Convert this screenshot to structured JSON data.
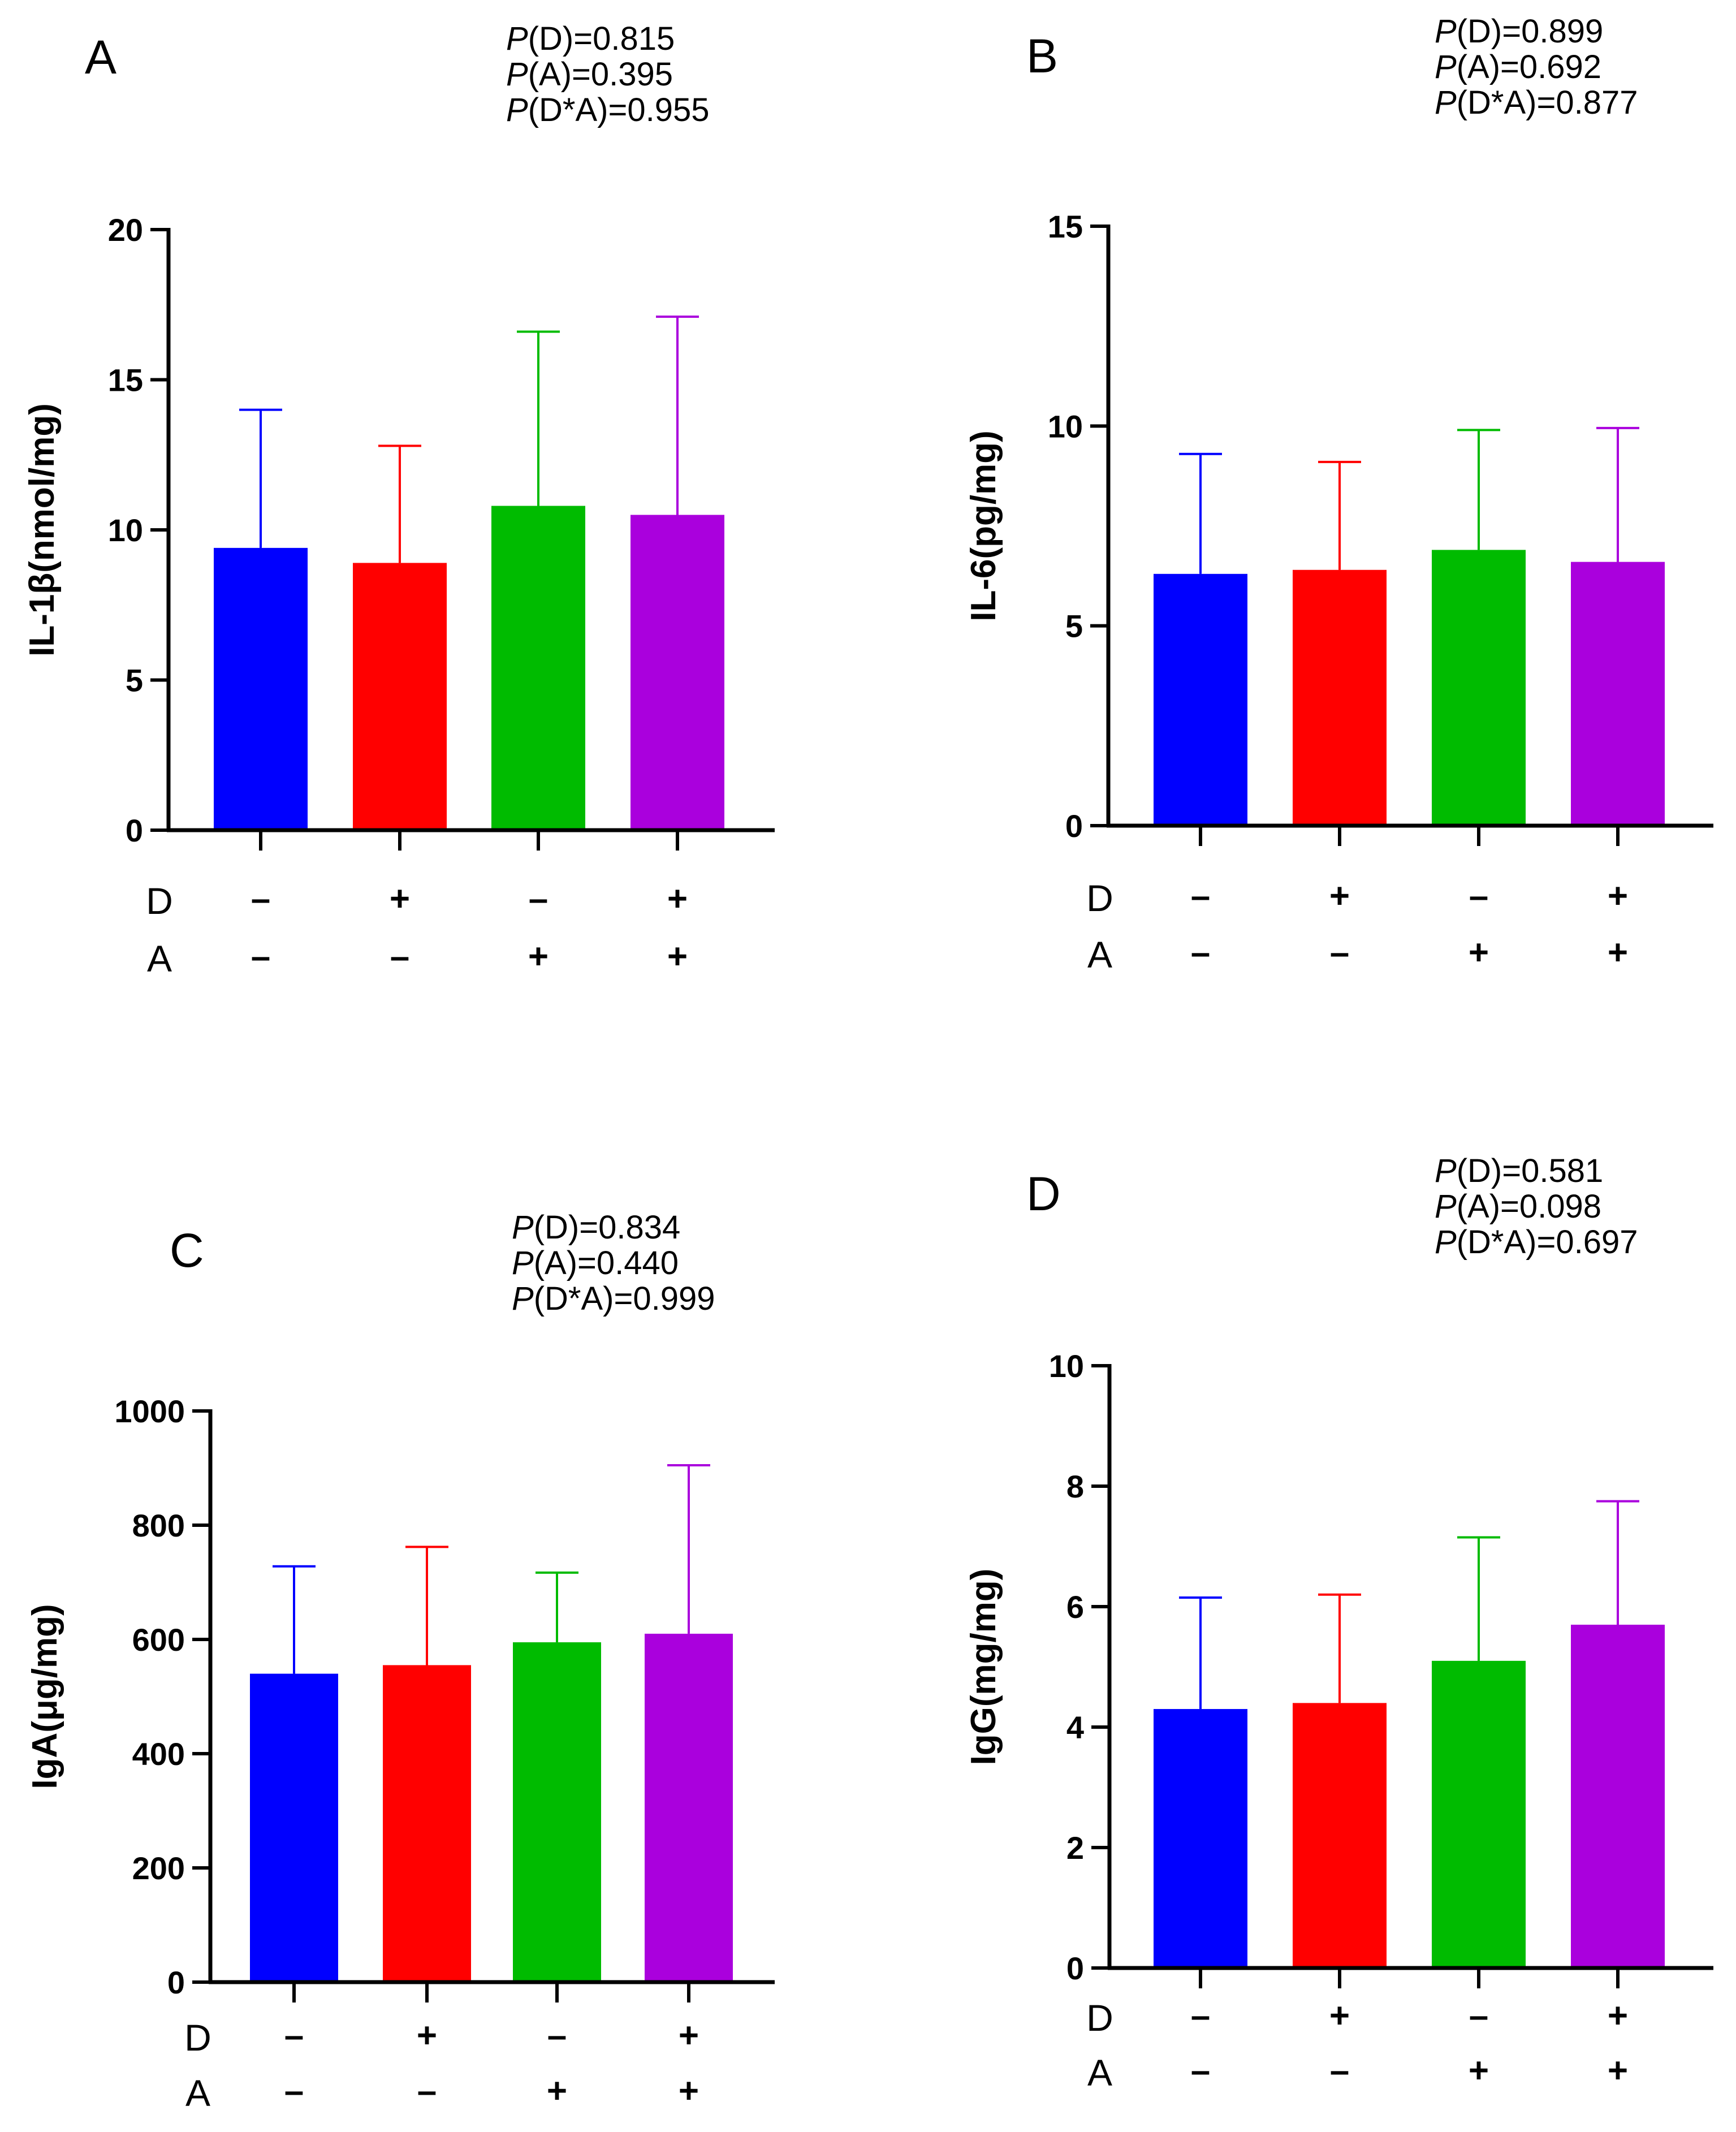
{
  "figure": {
    "panels": [
      {
        "letter": "A",
        "pvalues": [
          {
            "italic": "P",
            "rest": "(D)=0.815"
          },
          {
            "italic": "P",
            "rest": "(A)=0.395"
          },
          {
            "italic": "P",
            "rest": "(D*A)=0.955"
          }
        ],
        "row_labels": [
          "D",
          "A"
        ]
      },
      {
        "letter": "B",
        "pvalues": [
          {
            "italic": "P",
            "rest": "(D)=0.899"
          },
          {
            "italic": "P",
            "rest": "(A)=0.692"
          },
          {
            "italic": "P",
            "rest": "(D*A)=0.877"
          }
        ],
        "row_labels": [
          "D",
          "A"
        ]
      },
      {
        "letter": "C",
        "pvalues": [
          {
            "italic": "P",
            "rest": "(D)=0.834"
          },
          {
            "italic": "P",
            "rest": "(A)=0.440"
          },
          {
            "italic": "P",
            "rest": "(D*A)=0.999"
          }
        ],
        "row_labels": [
          "D",
          "A"
        ]
      },
      {
        "letter": "D",
        "pvalues": [
          {
            "italic": "P",
            "rest": "(D)=0.581"
          },
          {
            "italic": "P",
            "rest": "(A)=0.098"
          },
          {
            "italic": "P",
            "rest": "(D*A)=0.697"
          }
        ],
        "row_labels": [
          "D",
          "A"
        ]
      }
    ]
  },
  "chart_data": [
    {
      "type": "bar",
      "title": "",
      "xlabel": "",
      "ylabel": "IL-1β(nmol/mg)",
      "ylim": [
        0,
        20
      ],
      "yticks": [
        0,
        5,
        10,
        15,
        20
      ],
      "ytick_labels": [
        "0",
        "5",
        "10",
        "15",
        "20"
      ],
      "categories": [
        "D– A–",
        "D+ A–",
        "D– A+",
        "D+ A+"
      ],
      "D": [
        "–",
        "+",
        "–",
        "+"
      ],
      "A": [
        "–",
        "–",
        "+",
        "+"
      ],
      "values": [
        9.4,
        8.9,
        10.8,
        10.5
      ],
      "errors": [
        4.6,
        3.9,
        5.8,
        6.6
      ],
      "colors": [
        "#0000ff",
        "#ff0000",
        "#00bb00",
        "#aa00dd"
      ]
    },
    {
      "type": "bar",
      "title": "",
      "xlabel": "",
      "ylabel": "IL-6(pg/mg)",
      "ylim": [
        0,
        15
      ],
      "yticks": [
        0,
        5,
        10,
        15
      ],
      "ytick_labels": [
        "0",
        "5",
        "10",
        "15"
      ],
      "categories": [
        "D– A–",
        "D+ A–",
        "D– A+",
        "D+ A+"
      ],
      "D": [
        "–",
        "+",
        "–",
        "+"
      ],
      "A": [
        "–",
        "–",
        "+",
        "+"
      ],
      "values": [
        6.3,
        6.4,
        6.9,
        6.6
      ],
      "errors": [
        3.0,
        2.7,
        3.0,
        3.35
      ],
      "colors": [
        "#0000ff",
        "#ff0000",
        "#00bb00",
        "#aa00dd"
      ]
    },
    {
      "type": "bar",
      "title": "",
      "xlabel": "",
      "ylabel": "IgA(μg/mg)",
      "ylim": [
        0,
        1000
      ],
      "yticks": [
        0,
        200,
        400,
        600,
        800,
        1000
      ],
      "ytick_labels": [
        "0",
        "200",
        "400",
        "600",
        "800",
        "1000"
      ],
      "categories": [
        "D– A–",
        "D+ A–",
        "D– A+",
        "D+ A+"
      ],
      "D": [
        "–",
        "+",
        "–",
        "+"
      ],
      "A": [
        "–",
        "–",
        "+",
        "+"
      ],
      "values": [
        540,
        555,
        595,
        610
      ],
      "errors": [
        188,
        207,
        122,
        295
      ],
      "colors": [
        "#0000ff",
        "#ff0000",
        "#00bb00",
        "#aa00dd"
      ]
    },
    {
      "type": "bar",
      "title": "",
      "xlabel": "",
      "ylabel": "IgG(mg/mg)",
      "ylim": [
        0,
        10
      ],
      "yticks": [
        0,
        2,
        4,
        6,
        8,
        10
      ],
      "ytick_labels": [
        "0",
        "2",
        "4",
        "6",
        "8",
        "10"
      ],
      "categories": [
        "D– A–",
        "D+ A–",
        "D– A+",
        "D+ A+"
      ],
      "D": [
        "–",
        "+",
        "–",
        "+"
      ],
      "A": [
        "–",
        "–",
        "+",
        "+"
      ],
      "values": [
        4.3,
        4.4,
        5.1,
        5.7
      ],
      "errors": [
        1.85,
        1.8,
        2.05,
        2.05
      ],
      "colors": [
        "#0000ff",
        "#ff0000",
        "#00bb00",
        "#aa00dd"
      ]
    }
  ]
}
